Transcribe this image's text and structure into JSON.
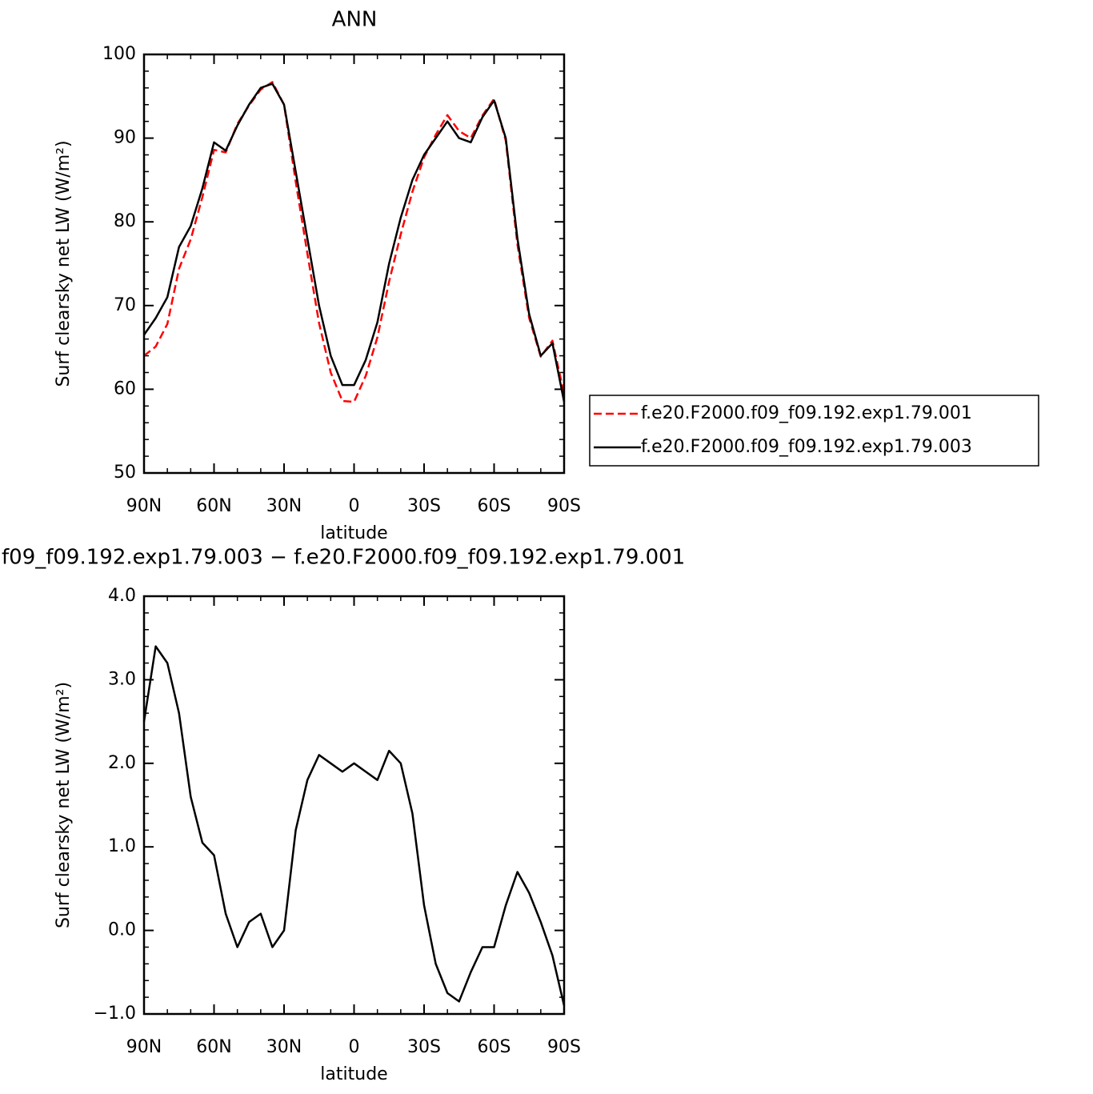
{
  "chart_data": [
    {
      "type": "line",
      "title": "ANN",
      "xlabel": "latitude",
      "ylabel": "Surf clearsky net LW (W/m²)",
      "x": [
        90,
        85,
        80,
        75,
        70,
        65,
        60,
        55,
        50,
        45,
        40,
        35,
        30,
        25,
        20,
        15,
        10,
        5,
        0,
        -5,
        -10,
        -15,
        -20,
        -25,
        -30,
        -35,
        -40,
        -45,
        -50,
        -55,
        -60,
        -65,
        -70,
        -75,
        -80,
        -85,
        -90
      ],
      "xlim": [
        90,
        -90
      ],
      "xticks": [
        {
          "value": 90,
          "label": "90N"
        },
        {
          "value": 60,
          "label": "60N"
        },
        {
          "value": 30,
          "label": "30N"
        },
        0,
        {
          "value": -30,
          "label": "30S"
        },
        {
          "value": -60,
          "label": "60S"
        },
        {
          "value": -90,
          "label": "90S"
        }
      ],
      "ylim": [
        50,
        100
      ],
      "yticks": [
        50,
        60,
        70,
        80,
        90,
        100
      ],
      "legend": "outside-right",
      "series": [
        {
          "name": "f.e20.F2000.f09_f09.192.exp1.79.001",
          "color": "#ff0000",
          "dashed": true,
          "values": [
            64,
            65.1,
            67.8,
            74.4,
            77.9,
            82.95,
            88.6,
            88.3,
            91.7,
            93.9,
            95.8,
            96.7,
            94,
            84.8,
            76.2,
            67.9,
            62,
            58.6,
            58.5,
            61.6,
            66.2,
            72.85,
            78.5,
            83.6,
            87.7,
            90.4,
            92.75,
            90.85,
            90,
            92.7,
            94.7,
            89.7,
            77.3,
            68.55,
            63.9,
            65.8,
            59.4
          ]
        },
        {
          "name": "f.e20.F2000.f09_f09.192.exp1.79.003",
          "color": "#000000",
          "dashed": false,
          "values": [
            66.5,
            68.5,
            71,
            77,
            79.5,
            84,
            89.5,
            88.5,
            91.5,
            94,
            96,
            96.5,
            94,
            86,
            78,
            70,
            64,
            60.5,
            60.5,
            63.5,
            68,
            75,
            80.5,
            85,
            88,
            90,
            92,
            90,
            89.5,
            92.5,
            94.5,
            90,
            78,
            69,
            64,
            65.5,
            58.5
          ]
        }
      ]
    },
    {
      "type": "line",
      "title": "f09_f09.192.exp1.79.003 − f.e20.F2000.f09_f09.192.exp1.79.001",
      "xlabel": "latitude",
      "ylabel": "Surf clearsky net LW (W/m²)",
      "x": [
        90,
        85,
        80,
        75,
        70,
        65,
        60,
        55,
        50,
        45,
        40,
        35,
        30,
        25,
        20,
        15,
        10,
        5,
        0,
        -5,
        -10,
        -15,
        -20,
        -25,
        -30,
        -35,
        -40,
        -45,
        -50,
        -55,
        -60,
        -65,
        -70,
        -75,
        -80,
        -85,
        -90
      ],
      "xlim": [
        90,
        -90
      ],
      "xticks": [
        {
          "value": 90,
          "label": "90N"
        },
        {
          "value": 60,
          "label": "60N"
        },
        {
          "value": 30,
          "label": "30N"
        },
        0,
        {
          "value": -30,
          "label": "30S"
        },
        {
          "value": -60,
          "label": "60S"
        },
        {
          "value": -90,
          "label": "90S"
        }
      ],
      "ylim": [
        -1,
        4
      ],
      "yticks": [
        {
          "value": -1,
          "label": "−1.0"
        },
        {
          "value": 0,
          "label": "0.0"
        },
        {
          "value": 1,
          "label": "1.0"
        },
        {
          "value": 2,
          "label": "2.0"
        },
        {
          "value": 3,
          "label": "3.0"
        },
        {
          "value": 4,
          "label": "4.0"
        }
      ],
      "series": [
        {
          "color": "#000000",
          "dashed": false,
          "values": [
            2.5,
            3.4,
            3.2,
            2.6,
            1.6,
            1.05,
            0.9,
            0.2,
            -0.2,
            0.1,
            0.2,
            -0.2,
            0,
            1.2,
            1.8,
            2.1,
            2,
            1.9,
            2,
            1.9,
            1.8,
            2.15,
            2,
            1.4,
            0.3,
            -0.4,
            -0.75,
            -0.85,
            -0.5,
            -0.2,
            -0.2,
            0.3,
            0.7,
            0.45,
            0.1,
            -0.3,
            -0.9
          ]
        }
      ]
    }
  ]
}
